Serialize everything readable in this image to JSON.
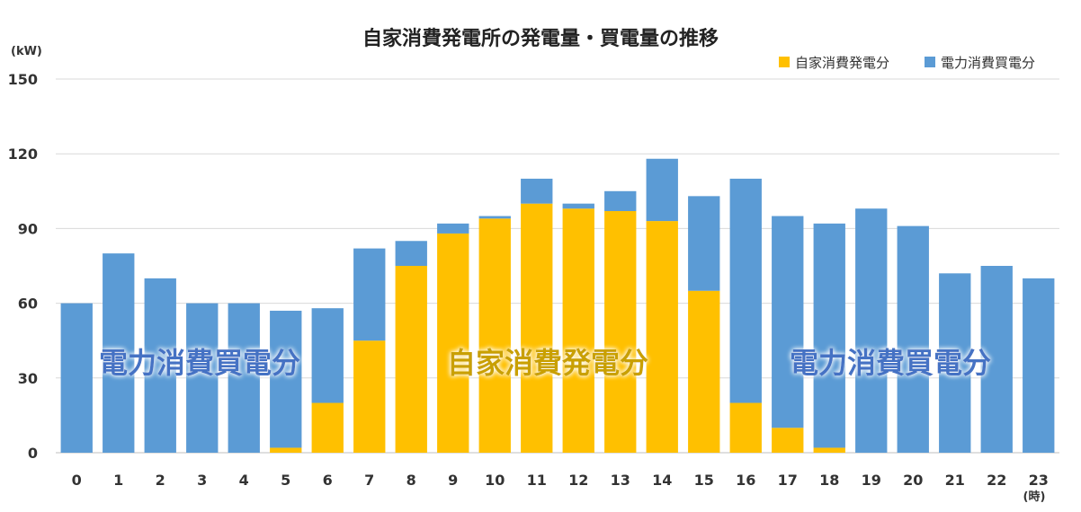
{
  "chart_data": {
    "type": "bar",
    "stacked": true,
    "title": "自家消費発電所の発電量・買電量の推移",
    "y_unit": "(kW)",
    "x_unit": "(時)",
    "ylim": [
      0,
      150
    ],
    "yticks": [
      0,
      30,
      60,
      90,
      120,
      150
    ],
    "grid": true,
    "legend_position": "top-right",
    "categories": [
      "0",
      "1",
      "2",
      "3",
      "4",
      "5",
      "6",
      "7",
      "8",
      "9",
      "10",
      "11",
      "12",
      "13",
      "14",
      "15",
      "16",
      "17",
      "18",
      "19",
      "20",
      "21",
      "22",
      "23"
    ],
    "series": [
      {
        "name": "自家消費発電分",
        "color": "#FFC000",
        "values": [
          0,
          0,
          0,
          0,
          0,
          2,
          20,
          45,
          75,
          88,
          94,
          100,
          98,
          97,
          93,
          65,
          20,
          10,
          2,
          0,
          0,
          0,
          0,
          0
        ]
      },
      {
        "name": "電力消費買電分",
        "color": "#5B9BD5",
        "values": [
          60,
          80,
          70,
          60,
          60,
          55,
          38,
          37,
          10,
          4,
          1,
          10,
          2,
          8,
          25,
          38,
          90,
          85,
          90,
          98,
          91,
          72,
          75,
          70
        ]
      }
    ],
    "annotations": [
      {
        "text": "電力消費買電分",
        "color": "#4472C4"
      },
      {
        "text": "自家消費発電分",
        "color": "#C9A000"
      },
      {
        "text": "電力消費買電分",
        "color": "#4472C4"
      }
    ]
  }
}
